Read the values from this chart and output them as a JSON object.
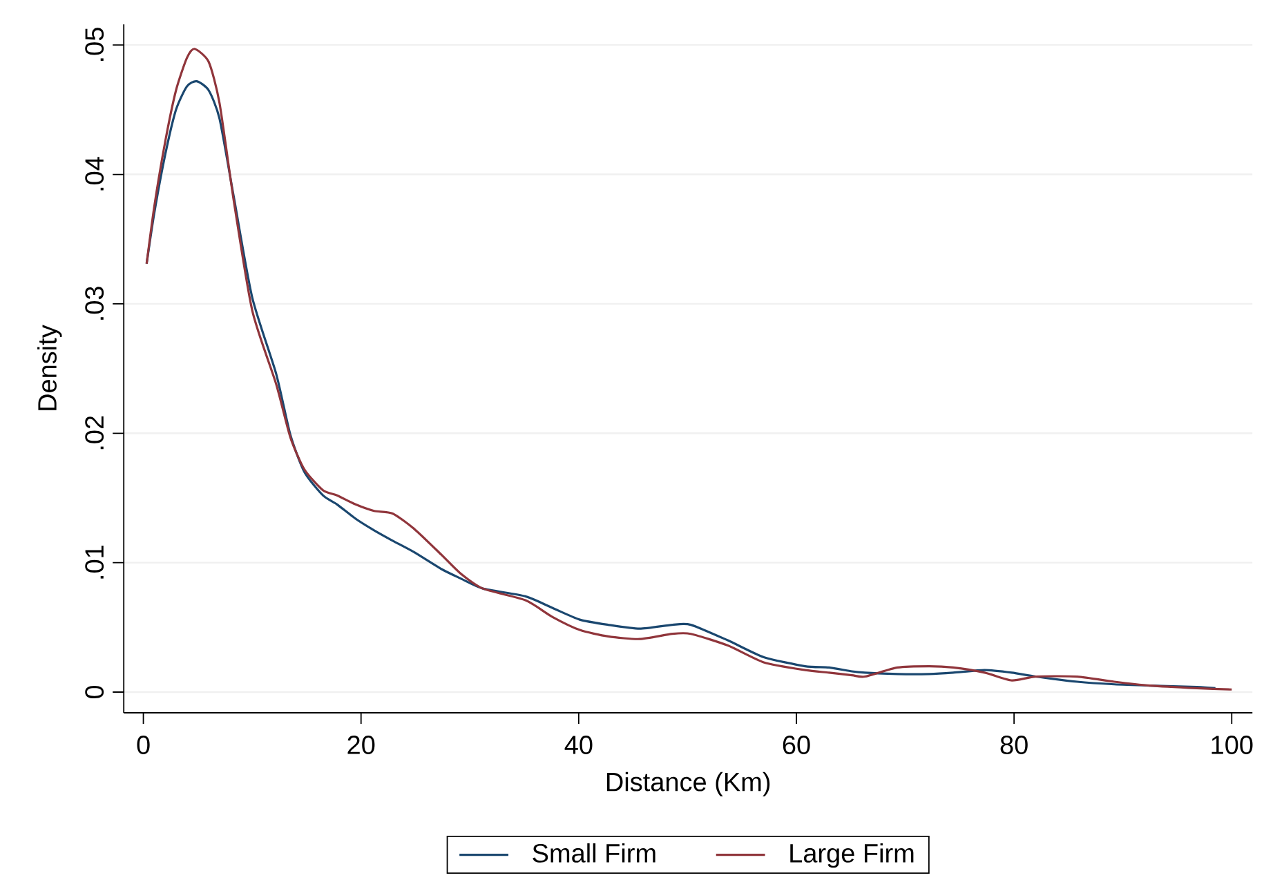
{
  "chart_data": {
    "type": "line",
    "xlabel": "Distance (Km)",
    "ylabel": "Density",
    "xlim": [
      -1.8,
      101.9
    ],
    "ylim": [
      -0.0016,
      0.0516
    ],
    "xticks": [
      0,
      20,
      40,
      60,
      80,
      100
    ],
    "yticks": [
      0,
      {
        "value": 0.01,
        "label": ".01"
      },
      {
        "value": 0.02,
        "label": ".02"
      },
      {
        "value": 0.03,
        "label": ".03"
      },
      {
        "value": 0.04,
        "label": ".04"
      },
      {
        "value": 0.05,
        "label": ".05"
      }
    ],
    "grid": "y",
    "legend": "bottom",
    "marker": "none",
    "line_style": "solid",
    "series": [
      {
        "name": "Small Firm",
        "color": "#1a476f",
        "x": [
          0.3,
          1,
          2,
          3,
          4,
          4.9,
          6,
          7,
          8.3,
          10,
          12.2,
          13.5,
          14.8,
          16.5,
          17.8,
          19.5,
          21.2,
          22.9,
          24.9,
          27.4,
          29.1,
          31.2,
          35.1,
          37.6,
          40.1,
          42.7,
          45.6,
          48.6,
          50.3,
          53.7,
          57.0,
          60.8,
          63.0,
          65.1,
          66.3,
          69.3,
          72.2,
          74.4,
          77.3,
          79.8,
          82.0,
          85.8,
          89.2,
          92.5,
          96.8,
          98.5
        ],
        "values": [
          0.0331,
          0.037,
          0.0415,
          0.045,
          0.0468,
          0.0472,
          0.0465,
          0.0443,
          0.0383,
          0.0305,
          0.0246,
          0.0199,
          0.017,
          0.0152,
          0.0145,
          0.0134,
          0.0125,
          0.0117,
          0.0108,
          0.0095,
          0.0088,
          0.008,
          0.0074,
          0.0065,
          0.0056,
          0.0052,
          0.0049,
          0.0052,
          0.0052,
          0.004,
          0.0027,
          0.002,
          0.0019,
          0.0016,
          0.0015,
          0.0014,
          0.0014,
          0.0015,
          0.0017,
          0.0015,
          0.0012,
          0.0008,
          0.0006,
          0.0005,
          0.0004,
          0.0003
        ]
      },
      {
        "name": "Large Firm",
        "color": "#90353b",
        "x": [
          0.3,
          1,
          2,
          3,
          4,
          4.7,
          6,
          7,
          8.3,
          10,
          12.2,
          13.5,
          14.8,
          16.5,
          17.8,
          19.5,
          21.2,
          22.9,
          24.9,
          27.4,
          29.1,
          31.2,
          35.1,
          37.6,
          40.1,
          42.7,
          45.6,
          48.6,
          50.3,
          53.7,
          57.0,
          60.8,
          63.0,
          65.1,
          66.3,
          69.3,
          72.2,
          74.4,
          77.3,
          79.8,
          82.0,
          85.8,
          89.2,
          92.5,
          96.8,
          100.0
        ],
        "values": [
          0.0331,
          0.0375,
          0.0425,
          0.0465,
          0.049,
          0.0497,
          0.0487,
          0.0455,
          0.038,
          0.0295,
          0.0238,
          0.0197,
          0.0172,
          0.0156,
          0.0152,
          0.0145,
          0.014,
          0.0138,
          0.0126,
          0.0106,
          0.0092,
          0.008,
          0.0071,
          0.0058,
          0.0048,
          0.0043,
          0.0041,
          0.0045,
          0.0045,
          0.0036,
          0.0023,
          0.0017,
          0.0015,
          0.0013,
          0.0012,
          0.0019,
          0.002,
          0.0019,
          0.0015,
          0.0009,
          0.0012,
          0.0012,
          0.0008,
          0.0005,
          0.0003,
          0.0002
        ]
      }
    ]
  }
}
